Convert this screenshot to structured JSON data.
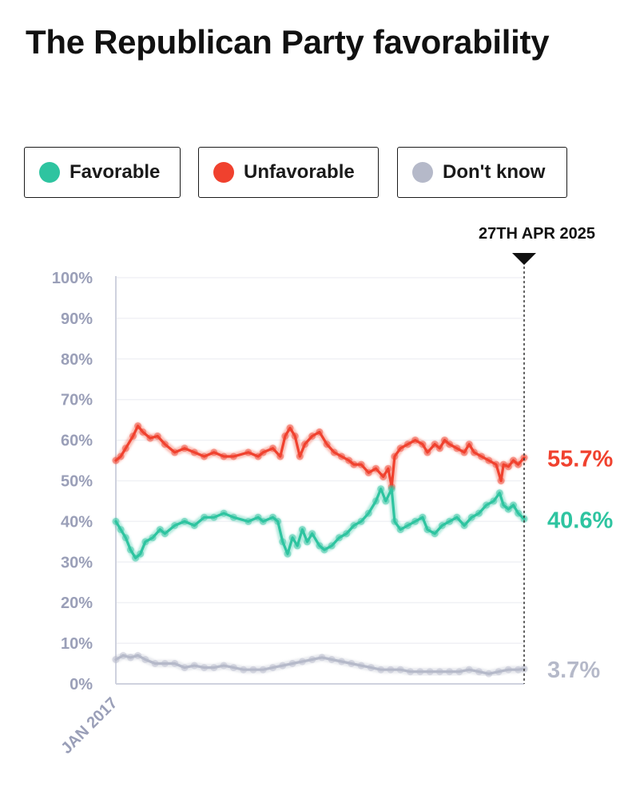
{
  "title": "The Republican Party favorability",
  "legend": [
    {
      "label": "Favorable",
      "color": "#2ec4a0"
    },
    {
      "label": "Unfavorable",
      "color": "#f0412e"
    },
    {
      "label": "Don't know",
      "color": "#b5b9c9"
    }
  ],
  "chart_data": {
    "type": "line",
    "title": "The Republican Party favorability",
    "xlabel": "",
    "ylabel": "",
    "x_tick_label": "JAN 2017",
    "current_date_label": "27TH APR 2025",
    "ylim": [
      0,
      100
    ],
    "yticks": [
      0,
      10,
      20,
      30,
      40,
      50,
      60,
      70,
      80,
      90,
      100
    ],
    "ytick_labels": [
      "0%",
      "10%",
      "20%",
      "30%",
      "40%",
      "50%",
      "60%",
      "70%",
      "80%",
      "90%",
      "100%"
    ],
    "x_range": [
      2017.0,
      2025.32
    ],
    "series": [
      {
        "name": "Unfavorable",
        "color": "#f0412e",
        "end_label": "55.7%",
        "points": [
          [
            2017.0,
            55
          ],
          [
            2017.1,
            56
          ],
          [
            2017.2,
            58
          ],
          [
            2017.35,
            61
          ],
          [
            2017.45,
            63.5
          ],
          [
            2017.55,
            62
          ],
          [
            2017.7,
            60.5
          ],
          [
            2017.85,
            61
          ],
          [
            2018.0,
            59
          ],
          [
            2018.2,
            57
          ],
          [
            2018.4,
            58
          ],
          [
            2018.6,
            57
          ],
          [
            2018.8,
            56
          ],
          [
            2019.0,
            57
          ],
          [
            2019.2,
            56
          ],
          [
            2019.4,
            56
          ],
          [
            2019.7,
            57
          ],
          [
            2019.9,
            56
          ],
          [
            2020.0,
            57
          ],
          [
            2020.2,
            58
          ],
          [
            2020.35,
            56
          ],
          [
            2020.45,
            61
          ],
          [
            2020.55,
            63
          ],
          [
            2020.65,
            61
          ],
          [
            2020.75,
            56
          ],
          [
            2020.85,
            59
          ],
          [
            2021.0,
            61
          ],
          [
            2021.15,
            62
          ],
          [
            2021.3,
            59
          ],
          [
            2021.45,
            57
          ],
          [
            2021.6,
            56
          ],
          [
            2021.75,
            55
          ],
          [
            2021.85,
            54
          ],
          [
            2022.0,
            54
          ],
          [
            2022.15,
            52
          ],
          [
            2022.3,
            53
          ],
          [
            2022.45,
            51
          ],
          [
            2022.55,
            53
          ],
          [
            2022.62,
            48.5
          ],
          [
            2022.68,
            56
          ],
          [
            2022.8,
            58
          ],
          [
            2022.95,
            59
          ],
          [
            2023.1,
            60
          ],
          [
            2023.25,
            59
          ],
          [
            2023.35,
            57
          ],
          [
            2023.5,
            59
          ],
          [
            2023.6,
            58
          ],
          [
            2023.7,
            60
          ],
          [
            2023.8,
            59
          ],
          [
            2023.95,
            58
          ],
          [
            2024.1,
            57
          ],
          [
            2024.2,
            59
          ],
          [
            2024.3,
            57
          ],
          [
            2024.45,
            56
          ],
          [
            2024.6,
            55
          ],
          [
            2024.75,
            54
          ],
          [
            2024.85,
            50
          ],
          [
            2024.9,
            54
          ],
          [
            2025.0,
            53.5
          ],
          [
            2025.1,
            55
          ],
          [
            2025.2,
            54
          ],
          [
            2025.32,
            55.7
          ]
        ]
      },
      {
        "name": "Favorable",
        "color": "#2ec4a0",
        "end_label": "40.6%",
        "points": [
          [
            2017.0,
            40
          ],
          [
            2017.1,
            38
          ],
          [
            2017.2,
            36
          ],
          [
            2017.3,
            33
          ],
          [
            2017.4,
            31
          ],
          [
            2017.5,
            32
          ],
          [
            2017.6,
            35
          ],
          [
            2017.75,
            36
          ],
          [
            2017.9,
            38
          ],
          [
            2018.0,
            37
          ],
          [
            2018.2,
            39
          ],
          [
            2018.4,
            40
          ],
          [
            2018.6,
            39
          ],
          [
            2018.8,
            41
          ],
          [
            2019.0,
            41
          ],
          [
            2019.2,
            42
          ],
          [
            2019.4,
            41
          ],
          [
            2019.7,
            40
          ],
          [
            2019.9,
            41
          ],
          [
            2020.0,
            40
          ],
          [
            2020.2,
            41
          ],
          [
            2020.3,
            40
          ],
          [
            2020.4,
            35
          ],
          [
            2020.5,
            32
          ],
          [
            2020.6,
            36
          ],
          [
            2020.7,
            34
          ],
          [
            2020.8,
            38
          ],
          [
            2020.9,
            35
          ],
          [
            2021.0,
            37
          ],
          [
            2021.15,
            34
          ],
          [
            2021.25,
            33
          ],
          [
            2021.4,
            34
          ],
          [
            2021.55,
            36
          ],
          [
            2021.7,
            37
          ],
          [
            2021.85,
            39
          ],
          [
            2022.0,
            40
          ],
          [
            2022.15,
            42
          ],
          [
            2022.3,
            45
          ],
          [
            2022.4,
            48
          ],
          [
            2022.5,
            45
          ],
          [
            2022.62,
            48
          ],
          [
            2022.68,
            40
          ],
          [
            2022.8,
            38
          ],
          [
            2022.95,
            39
          ],
          [
            2023.1,
            40
          ],
          [
            2023.25,
            41
          ],
          [
            2023.35,
            38
          ],
          [
            2023.5,
            37
          ],
          [
            2023.65,
            39
          ],
          [
            2023.8,
            40
          ],
          [
            2023.95,
            41
          ],
          [
            2024.1,
            39
          ],
          [
            2024.25,
            41
          ],
          [
            2024.4,
            42
          ],
          [
            2024.55,
            44
          ],
          [
            2024.7,
            45
          ],
          [
            2024.82,
            47
          ],
          [
            2024.9,
            44
          ],
          [
            2025.0,
            43
          ],
          [
            2025.1,
            44
          ],
          [
            2025.2,
            42
          ],
          [
            2025.32,
            40.6
          ]
        ]
      },
      {
        "name": "Don't know",
        "color": "#b5b9c9",
        "end_label": "3.7%",
        "points": [
          [
            2017.0,
            6
          ],
          [
            2017.15,
            7
          ],
          [
            2017.3,
            6.5
          ],
          [
            2017.45,
            7
          ],
          [
            2017.6,
            6
          ],
          [
            2017.8,
            5
          ],
          [
            2018.0,
            5
          ],
          [
            2018.2,
            5
          ],
          [
            2018.4,
            4
          ],
          [
            2018.6,
            4.5
          ],
          [
            2018.8,
            4
          ],
          [
            2019.0,
            4
          ],
          [
            2019.2,
            4.5
          ],
          [
            2019.4,
            4
          ],
          [
            2019.6,
            3.5
          ],
          [
            2019.8,
            3.5
          ],
          [
            2020.0,
            3.5
          ],
          [
            2020.2,
            4
          ],
          [
            2020.4,
            4.5
          ],
          [
            2020.6,
            5
          ],
          [
            2020.8,
            5.5
          ],
          [
            2021.0,
            6
          ],
          [
            2021.2,
            6.5
          ],
          [
            2021.4,
            6
          ],
          [
            2021.6,
            5.5
          ],
          [
            2021.8,
            5
          ],
          [
            2022.0,
            4.5
          ],
          [
            2022.2,
            4
          ],
          [
            2022.4,
            3.5
          ],
          [
            2022.6,
            3.5
          ],
          [
            2022.8,
            3.5
          ],
          [
            2023.0,
            3
          ],
          [
            2023.2,
            3
          ],
          [
            2023.4,
            3
          ],
          [
            2023.6,
            3
          ],
          [
            2023.8,
            3
          ],
          [
            2024.0,
            3
          ],
          [
            2024.2,
            3.5
          ],
          [
            2024.4,
            3
          ],
          [
            2024.6,
            2.5
          ],
          [
            2024.8,
            3
          ],
          [
            2025.0,
            3.5
          ],
          [
            2025.2,
            3.5
          ],
          [
            2025.32,
            3.7
          ]
        ]
      }
    ]
  }
}
